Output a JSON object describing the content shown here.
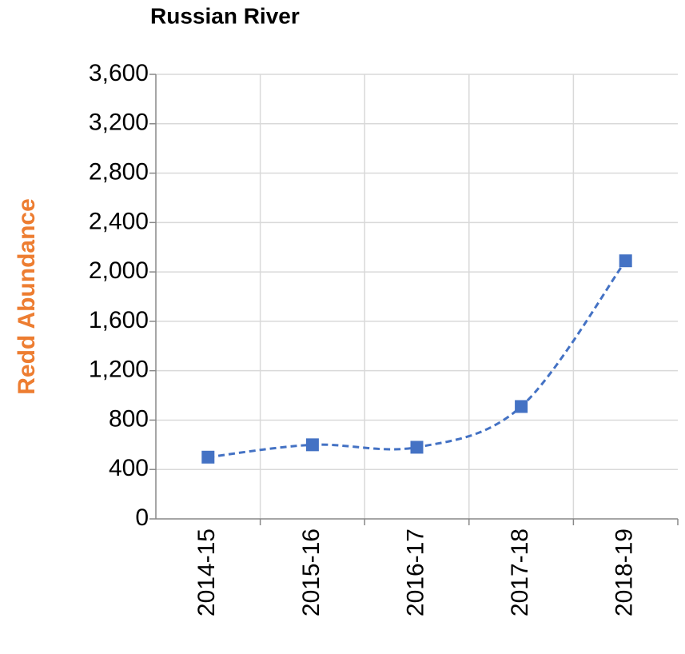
{
  "chart_data": {
    "type": "line",
    "title": "Russian River",
    "ylabel": "Redd Abundance",
    "categories": [
      "2014-15",
      "2015-16",
      "2016-17",
      "2017-18",
      "2018-19"
    ],
    "series": [
      {
        "name": "Redd Abundance",
        "color": "#4472c4",
        "values": [
          500,
          600,
          580,
          910,
          2090
        ]
      }
    ],
    "ylim": [
      0,
      3600
    ],
    "yticks": [
      0,
      400,
      800,
      {
        "value": 1200,
        "label": "1,200"
      },
      {
        "value": 1600,
        "label": "1,600"
      },
      {
        "value": 2000,
        "label": "2,000"
      },
      {
        "value": 2400,
        "label": "2,400"
      },
      {
        "value": 2800,
        "label": "2,800"
      },
      {
        "value": 3200,
        "label": "3,200"
      },
      {
        "value": 3600,
        "label": "3,600"
      }
    ],
    "grid": true,
    "smooth": true,
    "dashed": true,
    "ylabel_color": "#ed7d31"
  }
}
